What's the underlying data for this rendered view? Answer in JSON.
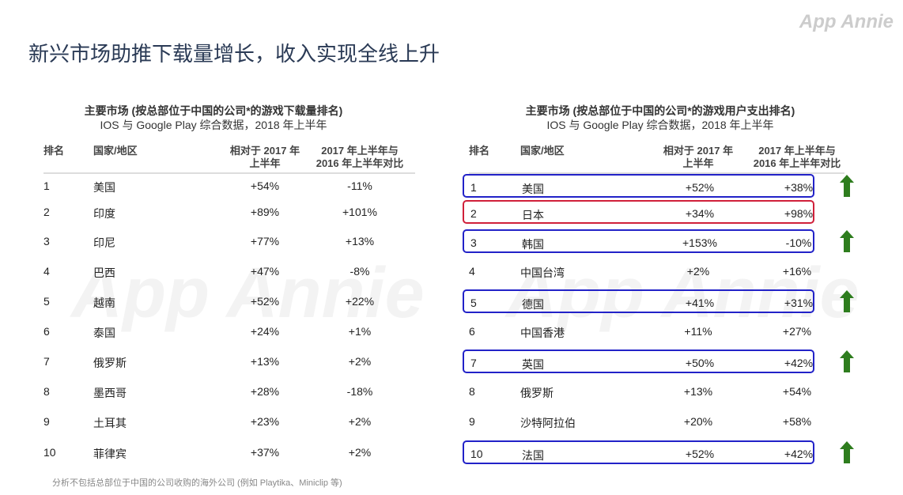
{
  "title": "新兴市场助推下载量增长，收入实现全线上升",
  "logo": "App Annie",
  "watermark": "App Annie",
  "footnote": "分析不包括总部位于中国的公司收购的海外公司 (例如 Playtika、Miniclip 等)",
  "headers": {
    "rank": "排名",
    "country": "国家/地区",
    "c3a": "相对于 2017 年",
    "c3b": "上半年",
    "c4a": "2017 年上半年与",
    "c4b": "2016 年上半年对比"
  },
  "left": {
    "title1": "主要市场 (按总部位于中国的公司*的游戏下载量排名)",
    "title2": "IOS 与 Google Play 综合数据，2018 年上半年",
    "rows": [
      [
        "1",
        "美国",
        "+54%",
        "-11%"
      ],
      [
        "2",
        "印度",
        "+89%",
        "+101%"
      ],
      [
        "3",
        "印尼",
        "+77%",
        "+13%"
      ],
      [
        "4",
        "巴西",
        "+47%",
        "-8%"
      ],
      [
        "5",
        "越南",
        "+52%",
        "+22%"
      ],
      [
        "6",
        "泰国",
        "+24%",
        "+1%"
      ],
      [
        "7",
        "俄罗斯",
        "+13%",
        "+2%"
      ],
      [
        "8",
        "墨西哥",
        "+28%",
        "-18%"
      ],
      [
        "9",
        "土耳其",
        "+23%",
        "+2%"
      ],
      [
        "10",
        "菲律宾",
        "+37%",
        "+2%"
      ]
    ]
  },
  "right": {
    "title1": "主要市场 (按总部位于中国的公司*的游戏用户支出排名)",
    "title2": "IOS 与 Google Play 综合数据，2018 年上半年",
    "rows": [
      [
        "1",
        "美国",
        "+52%",
        "+38%",
        "blue",
        true
      ],
      [
        "2",
        "日本",
        "+34%",
        "+98%",
        "red",
        false
      ],
      [
        "3",
        "韩国",
        "+153%",
        "-10%",
        "blue",
        true
      ],
      [
        "4",
        "中国台湾",
        "+2%",
        "+16%",
        "",
        false
      ],
      [
        "5",
        "德国",
        "+41%",
        "+31%",
        "blue",
        true
      ],
      [
        "6",
        "中国香港",
        "+11%",
        "+27%",
        "",
        false
      ],
      [
        "7",
        "英国",
        "+50%",
        "+42%",
        "blue",
        true
      ],
      [
        "8",
        "俄罗斯",
        "+13%",
        "+54%",
        "",
        false
      ],
      [
        "9",
        "沙特阿拉伯",
        "+20%",
        "+58%",
        "",
        false
      ],
      [
        "10",
        "法国",
        "+52%",
        "+42%",
        "blue",
        true
      ]
    ]
  },
  "colors": {
    "arrow": "#2e7d1e",
    "blue": "#2222c8",
    "red": "#d0203a"
  }
}
